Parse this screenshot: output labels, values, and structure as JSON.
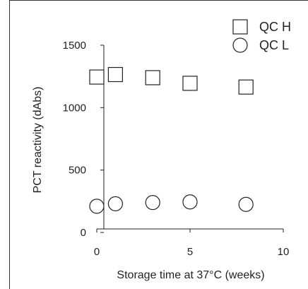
{
  "chart_data": {
    "type": "scatter",
    "title": "",
    "xlabel": "Storage time at 37°C (weeks)",
    "ylabel": "PCT reactivity (dAbs)",
    "xlim": [
      0,
      10
    ],
    "ylim": [
      0,
      1500
    ],
    "xticks": [
      0,
      5,
      10
    ],
    "yticks": [
      0,
      500,
      1000,
      1500
    ],
    "xtick_labels": [
      "0",
      "5",
      "10"
    ],
    "ytick_labels": [
      "0",
      "500",
      "1000",
      "1500"
    ],
    "grid": false,
    "legend_position": "top-right",
    "series": [
      {
        "name": "QC H",
        "marker": "square",
        "x": [
          0,
          1,
          3,
          5,
          8
        ],
        "y": [
          1245,
          1265,
          1240,
          1195,
          1165
        ]
      },
      {
        "name": "QC L",
        "marker": "circle",
        "x": [
          0,
          1,
          3,
          5,
          8
        ],
        "y": [
          210,
          230,
          240,
          245,
          225
        ]
      }
    ],
    "colors": {
      "marker_stroke": "#222222",
      "marker_fill": "#ffffff",
      "axis": "#222222",
      "frame": "#333333"
    }
  }
}
